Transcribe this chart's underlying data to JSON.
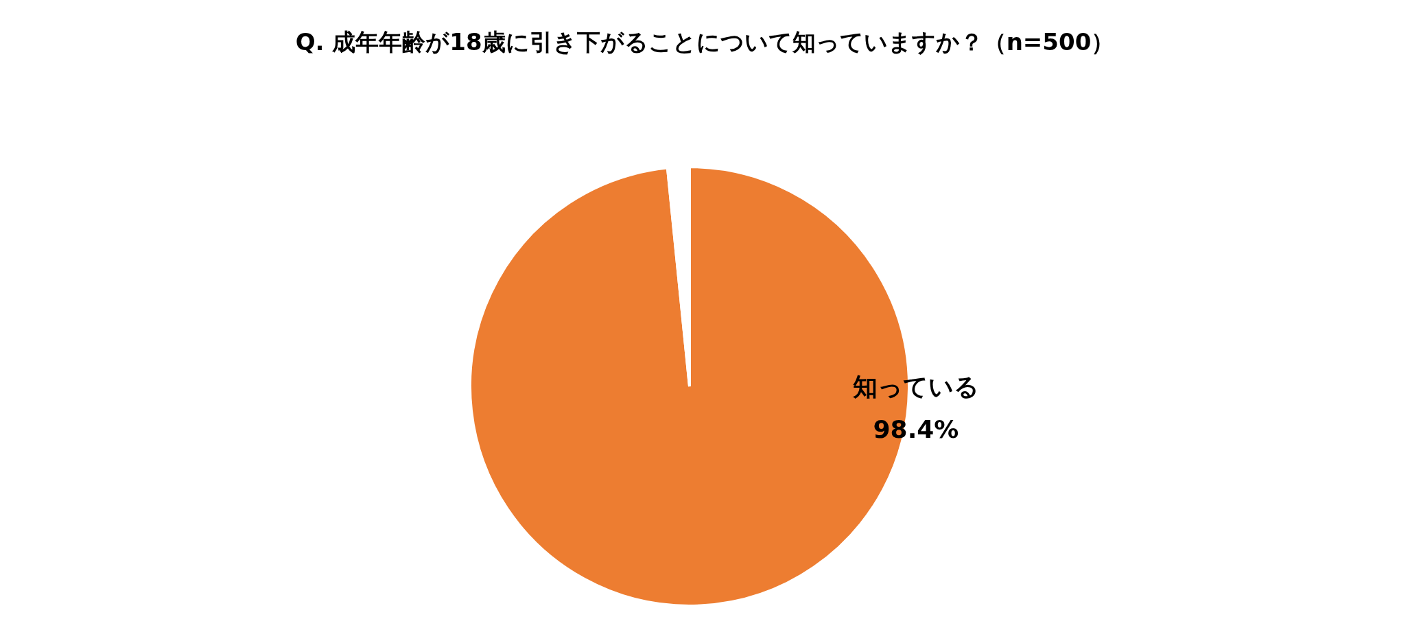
{
  "chart_data": {
    "type": "pie",
    "title": "Q. 成年年齢が18歳に引き下がることについて知っていますか？（n=500）",
    "categories": [
      "知っている",
      null
    ],
    "values": [
      98.4,
      1.6
    ],
    "colors": [
      "#ed7d31",
      "#ffffff"
    ],
    "value_labels": [
      "98.4%",
      null
    ],
    "legend": false
  }
}
